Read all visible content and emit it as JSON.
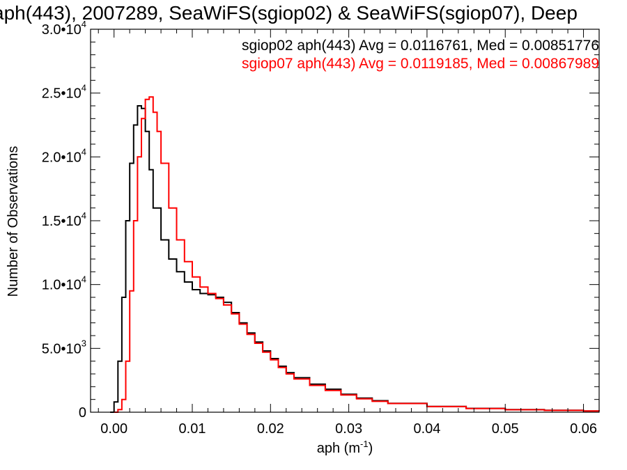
{
  "chart_data": {
    "type": "line",
    "title": "aph(443), 2007289, SeaWiFS(sgiop02) & SeaWiFS(sgiop07), Deep",
    "xlabel": "aph (m",
    "xlabel_sup": "-1",
    "xlabel_close": ")",
    "ylabel": "Number of Observations",
    "xlim": [
      -0.003,
      0.062
    ],
    "ylim": [
      0,
      30000
    ],
    "x_ticks": [
      {
        "value": 0.0,
        "label": "0.00"
      },
      {
        "value": 0.01,
        "label": "0.01"
      },
      {
        "value": 0.02,
        "label": "0.02"
      },
      {
        "value": 0.03,
        "label": "0.03"
      },
      {
        "value": 0.04,
        "label": "0.04"
      },
      {
        "value": 0.05,
        "label": "0.05"
      },
      {
        "value": 0.06,
        "label": "0.06"
      }
    ],
    "y_ticks": [
      {
        "value": 0,
        "mant": "0",
        "exp": ""
      },
      {
        "value": 5000,
        "mant": "5.0•10",
        "exp": "3"
      },
      {
        "value": 10000,
        "mant": "1.0•10",
        "exp": "4"
      },
      {
        "value": 15000,
        "mant": "1.5•10",
        "exp": "4"
      },
      {
        "value": 20000,
        "mant": "2.0•10",
        "exp": "4"
      },
      {
        "value": 25000,
        "mant": "2.5•10",
        "exp": "4"
      },
      {
        "value": 30000,
        "mant": "3.0•10",
        "exp": "4"
      }
    ],
    "grid": false,
    "legend_position": "top-right",
    "series": [
      {
        "name": "sgiop02 aph(443) Avg = 0.0116761, Med = 0.00851776",
        "color": "#000000",
        "x": [
          -0.0005,
          0.0,
          0.0005,
          0.001,
          0.0015,
          0.002,
          0.0025,
          0.003,
          0.0035,
          0.004,
          0.0045,
          0.005,
          0.006,
          0.007,
          0.008,
          0.009,
          0.01,
          0.011,
          0.012,
          0.013,
          0.014,
          0.015,
          0.016,
          0.017,
          0.018,
          0.019,
          0.02,
          0.021,
          0.022,
          0.023,
          0.025,
          0.027,
          0.029,
          0.031,
          0.033,
          0.035,
          0.04,
          0.045,
          0.05,
          0.055,
          0.06,
          0.062
        ],
        "y": [
          0,
          800,
          4000,
          9000,
          15000,
          19500,
          22500,
          24000,
          23800,
          22000,
          19000,
          16000,
          13500,
          12000,
          11000,
          10200,
          9600,
          9300,
          9200,
          9000,
          8600,
          7800,
          7000,
          6200,
          5500,
          4800,
          4200,
          3600,
          3100,
          2700,
          2200,
          1800,
          1400,
          1100,
          900,
          700,
          450,
          300,
          200,
          150,
          100,
          80
        ]
      },
      {
        "name": "sgiop07 aph(443) Avg = 0.0119185, Med = 0.00867989",
        "color": "#ff0000",
        "x": [
          0.0,
          0.0005,
          0.001,
          0.0015,
          0.002,
          0.0025,
          0.003,
          0.0035,
          0.004,
          0.0045,
          0.005,
          0.0055,
          0.006,
          0.007,
          0.008,
          0.009,
          0.01,
          0.011,
          0.012,
          0.013,
          0.014,
          0.015,
          0.016,
          0.017,
          0.018,
          0.019,
          0.02,
          0.021,
          0.022,
          0.023,
          0.025,
          0.027,
          0.029,
          0.031,
          0.033,
          0.035,
          0.04,
          0.045,
          0.05,
          0.055,
          0.06,
          0.062
        ],
        "y": [
          0,
          200,
          1000,
          4000,
          9500,
          15000,
          20000,
          23000,
          24500,
          24700,
          23500,
          22000,
          19500,
          16000,
          13500,
          11800,
          10600,
          9800,
          9300,
          8900,
          8400,
          7700,
          6900,
          6100,
          5400,
          4700,
          4100,
          3500,
          3000,
          2600,
          2100,
          1700,
          1350,
          1050,
          850,
          680,
          440,
          290,
          190,
          140,
          100,
          80
        ]
      }
    ]
  }
}
